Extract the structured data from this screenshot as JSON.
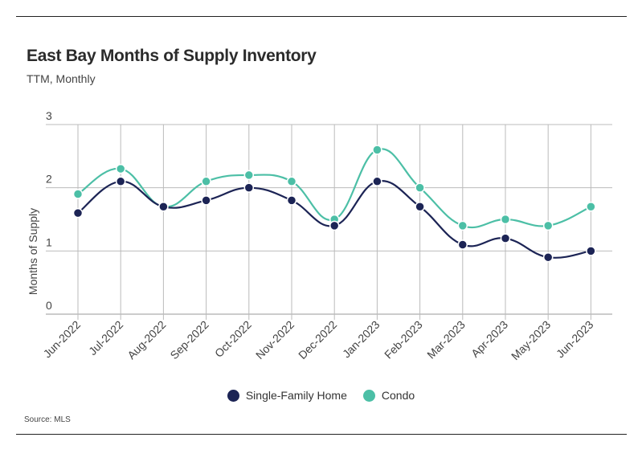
{
  "title": "East Bay Months of Supply Inventory",
  "subtitle": "TTM, Monthly",
  "source": "Source:  MLS",
  "chart_data": {
    "type": "line",
    "title": "East Bay Months of Supply Inventory",
    "subtitle": "TTM, Monthly",
    "xlabel": "",
    "ylabel": "Months of Supply",
    "ylim": [
      0,
      3
    ],
    "yticks": [
      "0",
      "1",
      "2",
      "3"
    ],
    "grid": true,
    "legend_position": "bottom",
    "categories": [
      "Jun-2022",
      "Jul-2022",
      "Aug-2022",
      "Sep-2022",
      "Oct-2022",
      "Nov-2022",
      "Dec-2022",
      "Jan-2023",
      "Feb-2023",
      "Mar-2023",
      "Apr-2023",
      "May-2023",
      "Jun-2023"
    ],
    "series": [
      {
        "name": "Single-Family Home",
        "color": "#1c2455",
        "values": [
          1.6,
          2.1,
          1.7,
          1.8,
          2.0,
          1.8,
          1.4,
          2.1,
          1.7,
          1.1,
          1.2,
          0.9,
          1.0
        ]
      },
      {
        "name": "Condo",
        "color": "#4cbfa6",
        "values": [
          1.9,
          2.3,
          1.7,
          2.1,
          2.2,
          2.1,
          1.5,
          2.6,
          2.0,
          1.4,
          1.5,
          1.4,
          1.7
        ]
      }
    ]
  }
}
